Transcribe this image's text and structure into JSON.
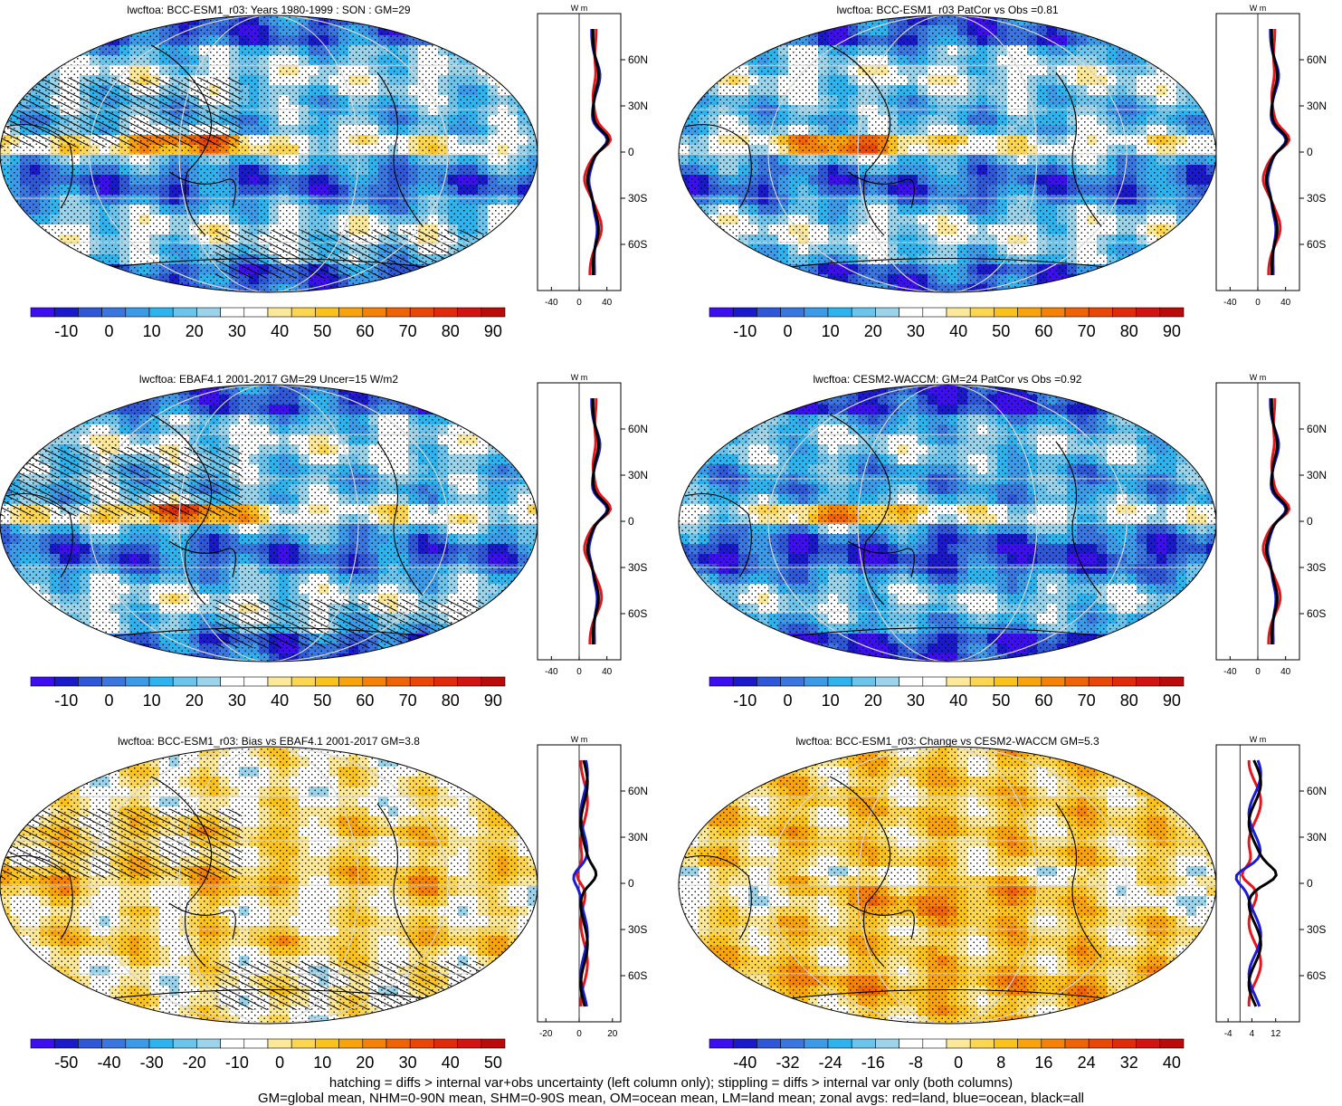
{
  "panels": [
    {
      "id": "p1",
      "title": "lwcftoa: BCC-ESM1_r03: Years 1980-1999 : SON : GM=29",
      "kind": "mean",
      "hatch": true,
      "colorbar_labels": [
        "-10",
        "0",
        "10",
        "20",
        "30",
        "40",
        "50",
        "60",
        "70",
        "80",
        "90"
      ],
      "zonal_ticks": [
        "-40",
        "0",
        "40"
      ],
      "zonal_range": [
        -60,
        60
      ]
    },
    {
      "id": "p2",
      "title": "lwcftoa: BCC-ESM1_r03 PatCor vs Obs =0.81",
      "kind": "mean",
      "hatch": false,
      "colorbar_labels": [
        "-10",
        "0",
        "10",
        "20",
        "30",
        "40",
        "50",
        "60",
        "70",
        "80",
        "90"
      ],
      "zonal_ticks": [
        "-40",
        "0",
        "40"
      ],
      "zonal_range": [
        -60,
        60
      ]
    },
    {
      "id": "p3",
      "title": "lwcftoa: EBAF4.1 2001-2017 GM=29 Uncer=15 W/m2",
      "kind": "mean",
      "hatch": true,
      "colorbar_labels": [
        "-10",
        "0",
        "10",
        "20",
        "30",
        "40",
        "50",
        "60",
        "70",
        "80",
        "90"
      ],
      "zonal_ticks": [
        "-40",
        "0",
        "40"
      ],
      "zonal_range": [
        -60,
        60
      ]
    },
    {
      "id": "p4",
      "title": "lwcftoa: CESM2-WACCM: GM=24 PatCor vs Obs =0.92",
      "kind": "mean2",
      "hatch": false,
      "colorbar_labels": [
        "-10",
        "0",
        "10",
        "20",
        "30",
        "40",
        "50",
        "60",
        "70",
        "80",
        "90"
      ],
      "zonal_ticks": [
        "-40",
        "0",
        "40"
      ],
      "zonal_range": [
        -60,
        60
      ]
    },
    {
      "id": "p5",
      "title": "lwcftoa: BCC-ESM1_r03: Bias vs EBAF4.1 2001-2017  GM=3.8",
      "kind": "bias",
      "hatch": true,
      "colorbar_labels": [
        "-50",
        "-40",
        "-30",
        "-20",
        "-10",
        "0",
        "10",
        "20",
        "30",
        "40",
        "50"
      ],
      "zonal_ticks": [
        "-20",
        "0",
        "20"
      ],
      "zonal_range": [
        -25,
        25
      ]
    },
    {
      "id": "p6",
      "title": "lwcftoa: BCC-ESM1_r03: Change vs CESM2-WACCM GM=5.3",
      "kind": "change",
      "hatch": false,
      "colorbar_labels": [
        "-40",
        "-32",
        "-24",
        "-16",
        "-8",
        "0",
        "8",
        "16",
        "24",
        "32",
        "40"
      ],
      "zonal_ticks": [
        "-4",
        "4",
        "12"
      ],
      "zonal_range": [
        -8,
        20
      ]
    }
  ],
  "lat_labels": [
    "60N",
    "30N",
    "0",
    "30S",
    "60S"
  ],
  "units_label": "W m",
  "footer": {
    "line1": "hatching = diffs > internal var+obs uncertainty (left column only); stippling = diffs > internal var only (both columns)",
    "line2": "GM=global mean, NHM=0-90N mean, SHM=0-90S mean, OM=ocean mean, LM=land mean; zonal avgs: red=land, blue=ocean, black=all"
  },
  "colors": {
    "land": "#e8141c",
    "ocean": "#1a1adb",
    "all": "#000000"
  },
  "palette": [
    "#3d0ff0",
    "#1a1acc",
    "#2e58d8",
    "#3a76e0",
    "#3c9be8",
    "#2db4ef",
    "#6ac4ec",
    "#9bd3ea",
    "#ffffff",
    "#ffffff",
    "#fbe899",
    "#fcd650",
    "#fbc21c",
    "#f9a30c",
    "#f58207",
    "#ef6306",
    "#e84707",
    "#e12a09",
    "#d31212",
    "#bb0a0a"
  ]
}
